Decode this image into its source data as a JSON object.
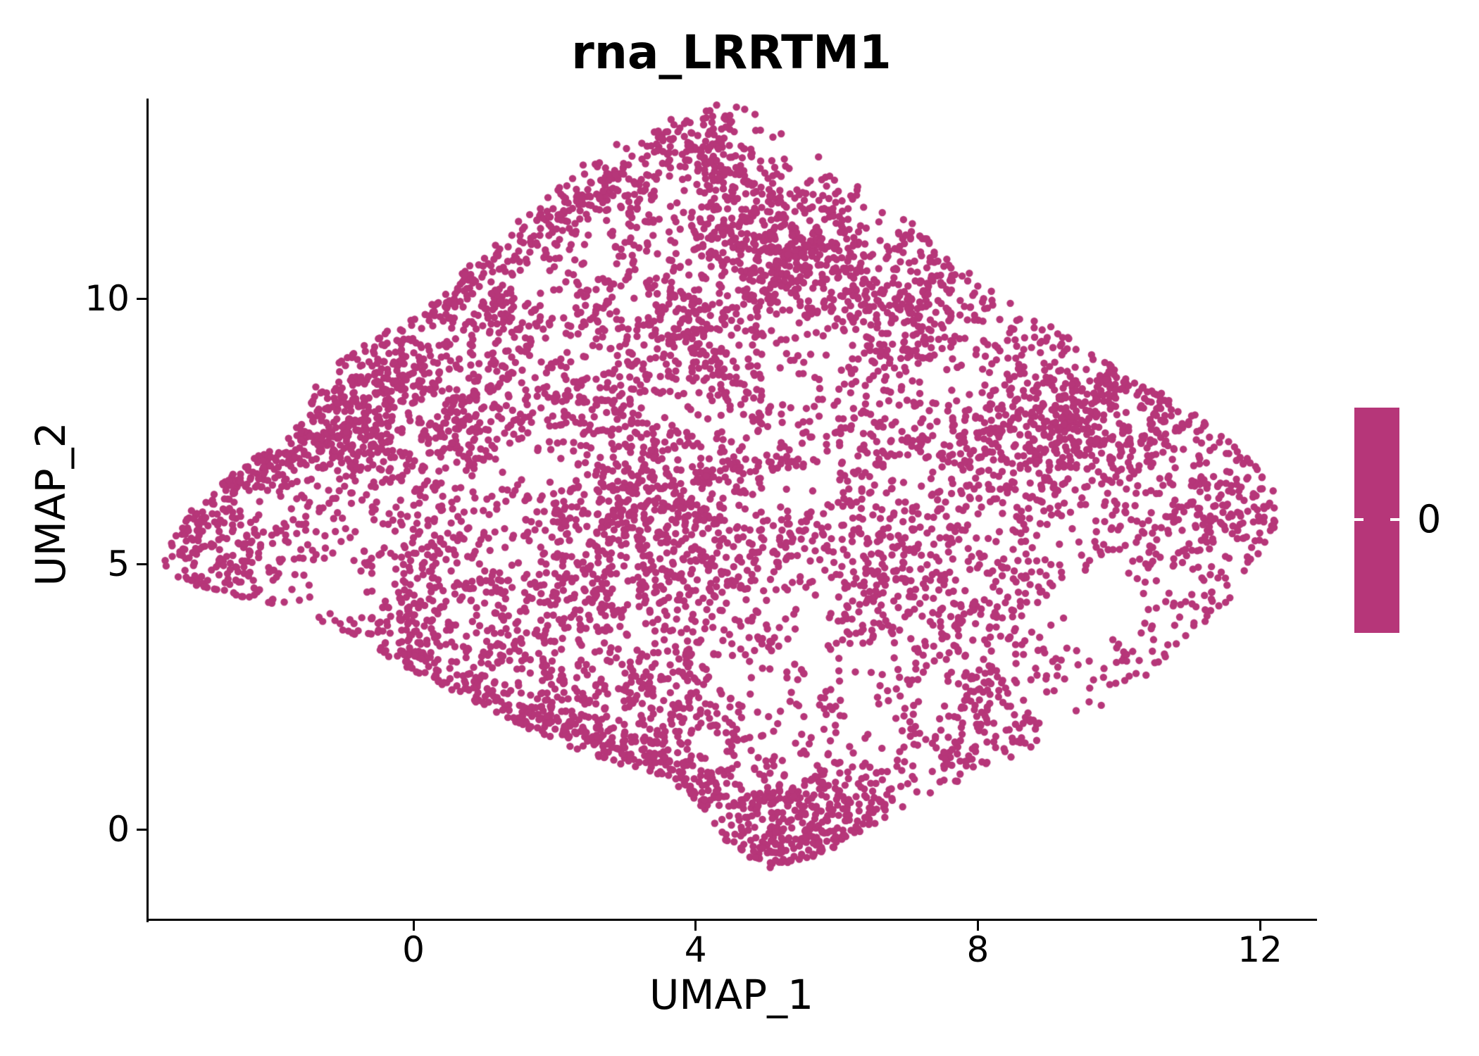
{
  "figure": {
    "background": "#FFFFFF",
    "axis_color": "#000000",
    "text_color": "#000000"
  },
  "chart_data": {
    "type": "scatter",
    "title": "rna_LRRTM1",
    "xlabel": "UMAP_1",
    "ylabel": "UMAP_2",
    "x_ticks": [
      0,
      4,
      8,
      12
    ],
    "y_ticks": [
      0,
      5,
      10
    ],
    "xlim": [
      -3.76,
      12.78
    ],
    "ylim": [
      -1.71,
      13.77
    ],
    "grid": false,
    "legend_position": "right",
    "point_color": "#B63679",
    "point_radius_px": 5.2,
    "n_points": 7200,
    "seed": 42,
    "colorbar": {
      "label": "0",
      "color": "#B63679"
    },
    "outline": [
      [
        -3.58,
        4.88
      ],
      [
        -3.36,
        5.74
      ],
      [
        -2.82,
        6.47
      ],
      [
        -2.17,
        7.07
      ],
      [
        -1.57,
        7.67
      ],
      [
        -1.37,
        8.4
      ],
      [
        -0.67,
        9.26
      ],
      [
        -0.27,
        9.65
      ],
      [
        0.33,
        9.92
      ],
      [
        0.63,
        10.45
      ],
      [
        1.18,
        11.05
      ],
      [
        1.73,
        11.78
      ],
      [
        2.33,
        12.51
      ],
      [
        2.92,
        12.97
      ],
      [
        3.72,
        13.43
      ],
      [
        4.32,
        13.66
      ],
      [
        4.77,
        13.57
      ],
      [
        5.22,
        13.17
      ],
      [
        5.92,
        12.51
      ],
      [
        6.67,
        11.91
      ],
      [
        7.32,
        11.11
      ],
      [
        8.12,
        10.32
      ],
      [
        8.91,
        9.59
      ],
      [
        9.71,
        8.93
      ],
      [
        10.51,
        8.33
      ],
      [
        11.31,
        7.6
      ],
      [
        12.01,
        6.8
      ],
      [
        12.29,
        6.21
      ],
      [
        12.21,
        5.48
      ],
      [
        11.76,
        4.62
      ],
      [
        11.16,
        3.75
      ],
      [
        10.56,
        3.02
      ],
      [
        9.86,
        2.36
      ],
      [
        9.01,
        1.7
      ],
      [
        8.07,
        1.1
      ],
      [
        7.17,
        0.57
      ],
      [
        6.47,
        0.04
      ],
      [
        5.77,
        -0.49
      ],
      [
        5.02,
        -0.76
      ],
      [
        4.47,
        -0.29
      ],
      [
        4.12,
        0.37
      ],
      [
        3.62,
        0.97
      ],
      [
        2.73,
        1.3
      ],
      [
        1.83,
        1.76
      ],
      [
        0.93,
        2.36
      ],
      [
        0.03,
        2.96
      ],
      [
        -0.82,
        3.62
      ],
      [
        -1.67,
        4.15
      ],
      [
        -2.57,
        4.42
      ],
      [
        -3.16,
        4.62
      ]
    ],
    "voids": [
      [
        -1.05,
        4.6,
        0.6,
        0.1
      ],
      [
        0.3,
        2.75,
        0.55,
        0.12
      ],
      [
        2.1,
        7.1,
        0.6,
        0.15
      ],
      [
        3.55,
        7.95,
        0.55,
        0.25
      ],
      [
        5.4,
        6.3,
        0.6,
        0.15
      ],
      [
        9.7,
        4.2,
        0.95,
        0.06
      ],
      [
        10.8,
        6.5,
        0.55,
        0.25
      ],
      [
        6.6,
        1.9,
        0.5,
        0.18
      ],
      [
        3.1,
        3.7,
        0.5,
        0.22
      ],
      [
        4.6,
        3.0,
        0.45,
        0.25
      ],
      [
        -0.3,
        6.4,
        0.4,
        0.25
      ],
      [
        1.2,
        5.15,
        0.4,
        0.3
      ],
      [
        7.4,
        8.4,
        0.5,
        0.3
      ],
      [
        8.2,
        5.8,
        0.45,
        0.35
      ],
      [
        2.5,
        9.0,
        0.45,
        0.35
      ],
      [
        6.0,
        9.0,
        0.5,
        0.35
      ],
      [
        -2.1,
        4.9,
        0.35,
        0.3
      ],
      [
        5.6,
        12.2,
        0.35,
        0.35
      ]
    ],
    "hotspots": [
      [
        -1.1,
        7.5,
        0.8,
        1.1
      ],
      [
        -0.3,
        8.6,
        0.6,
        0.7
      ],
      [
        5.3,
        10.8,
        0.95,
        0.65
      ],
      [
        4.3,
        12.6,
        0.55,
        0.6
      ],
      [
        8.6,
        7.4,
        1.05,
        0.55
      ],
      [
        9.8,
        8.3,
        0.7,
        0.5
      ],
      [
        5.5,
        0.3,
        0.8,
        0.85
      ],
      [
        2.6,
        1.9,
        0.9,
        0.45
      ],
      [
        -2.5,
        5.2,
        0.55,
        0.45
      ],
      [
        11.5,
        6.0,
        0.55,
        0.5
      ],
      [
        1.0,
        9.6,
        0.65,
        0.45
      ],
      [
        7.0,
        9.9,
        0.85,
        0.45
      ],
      [
        3.3,
        5.9,
        0.65,
        0.35
      ],
      [
        0.8,
        7.4,
        0.6,
        0.4
      ],
      [
        6.8,
        4.6,
        0.7,
        0.35
      ],
      [
        4.0,
        9.0,
        0.6,
        0.35
      ],
      [
        10.4,
        7.3,
        0.6,
        0.45
      ]
    ],
    "ridges": [
      [
        -3.4,
        4.7,
        0.0,
        2.95,
        0.3,
        0.7
      ],
      [
        0.0,
        2.95,
        2.7,
        1.35,
        0.3,
        0.6
      ],
      [
        -3.3,
        5.6,
        -1.4,
        7.55,
        0.28,
        0.55
      ],
      [
        0.5,
        9.95,
        4.2,
        13.4,
        0.32,
        0.45
      ],
      [
        2.8,
        1.3,
        4.05,
        0.55,
        0.28,
        0.45
      ],
      [
        11.9,
        6.8,
        12.2,
        5.6,
        0.3,
        0.5
      ],
      [
        4.6,
        -0.6,
        6.3,
        0.1,
        0.3,
        0.5
      ]
    ]
  }
}
